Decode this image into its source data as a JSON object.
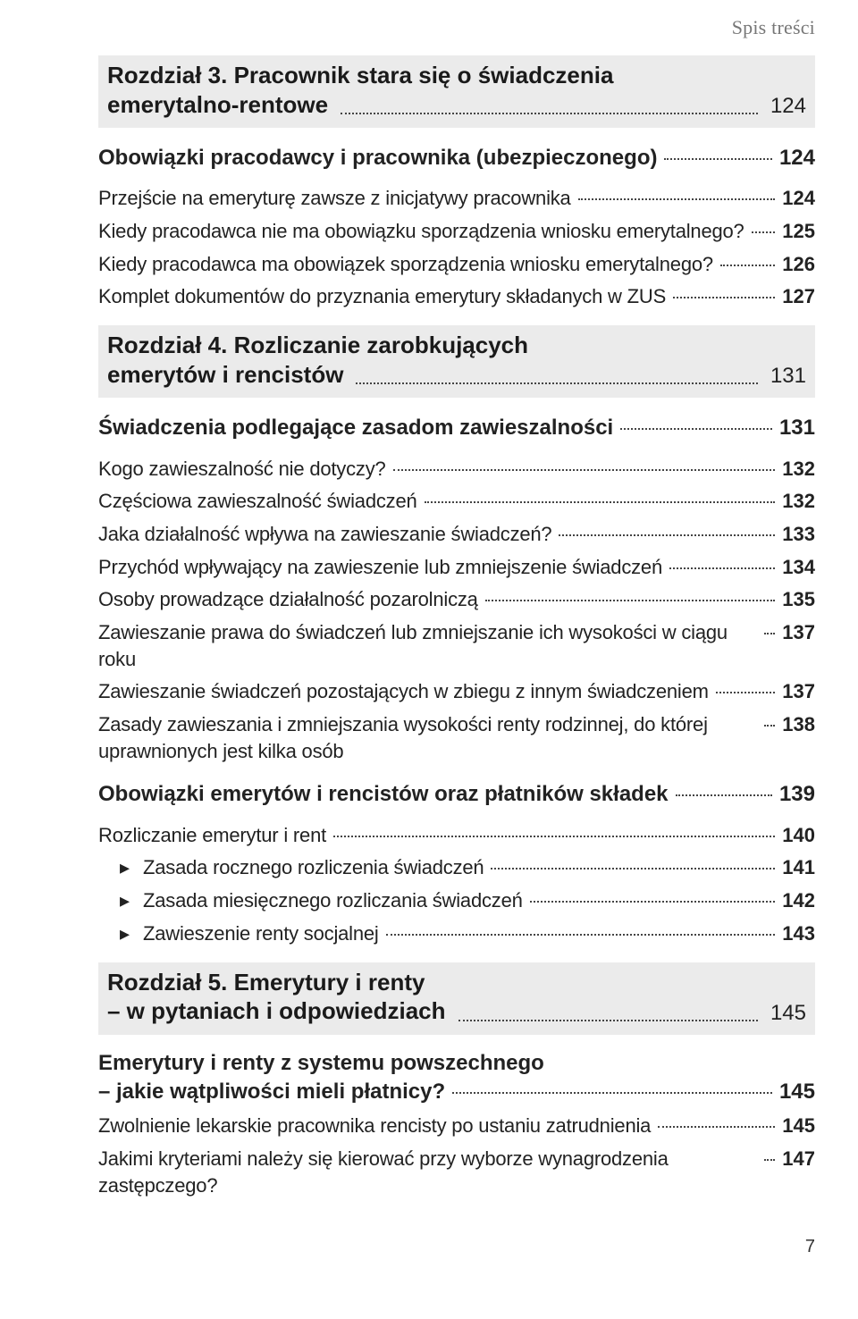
{
  "running_head": "Spis treści",
  "page_number": "7",
  "chapters": [
    {
      "title_line1": "Rozdział 3. Pracownik stara się o świadczenia",
      "title_line2": "emerytalno-rentowe",
      "page": "124",
      "entries": [
        {
          "style": "bold",
          "text": "Obowiązki pracodawcy i pracownika (ubezpieczonego)",
          "page": "124"
        },
        {
          "style": "cond",
          "text": "Przejście na emeryturę zawsze z inicjatywy pracownika",
          "page": "124"
        },
        {
          "style": "cond",
          "text": "Kiedy pracodawca nie ma obowiązku sporządzenia wniosku emerytalnego?",
          "page": "125"
        },
        {
          "style": "cond",
          "text": "Kiedy pracodawca ma obowiązek sporządzenia wniosku emerytalnego?",
          "page": "126"
        },
        {
          "style": "cond",
          "text": "Komplet dokumentów do przyznania emerytury składanych w ZUS",
          "page": "127"
        }
      ]
    },
    {
      "title_line1": "Rozdział 4. Rozliczanie zarobkujących",
      "title_line2": "emerytów  i rencistów",
      "page": "131",
      "entries": [
        {
          "style": "bold",
          "text": "Świadczenia podlegające zasadom zawieszalności",
          "page": "131"
        },
        {
          "style": "cond",
          "text": "Kogo zawieszalność nie dotyczy?",
          "page": "132"
        },
        {
          "style": "cond",
          "text": "Częściowa zawieszalność świadczeń",
          "page": "132"
        },
        {
          "style": "cond",
          "text": "Jaka działalność wpływa na zawieszanie świadczeń?",
          "page": "133"
        },
        {
          "style": "cond",
          "text": "Przychód wpływający na zawieszenie lub zmniejszenie świadczeń",
          "page": "134"
        },
        {
          "style": "cond",
          "text": "Osoby prowadzące działalność pozarolniczą",
          "page": "135"
        },
        {
          "style": "cond",
          "text": "Zawieszanie prawa do świadczeń lub zmniejszanie ich wysokości w ciągu roku",
          "page": "137"
        },
        {
          "style": "cond",
          "text": "Zawieszanie świadczeń pozostających w zbiegu z innym świadczeniem",
          "page": "137"
        },
        {
          "style": "cond",
          "text": "Zasady zawieszania i zmniejszania wysokości renty rodzinnej, do której uprawnionych jest kilka osób",
          "page": "138"
        },
        {
          "style": "bold",
          "text": "Obowiązki emerytów i rencistów oraz płatników składek",
          "page": "139"
        },
        {
          "style": "cond",
          "text": "Rozliczanie emerytur i rent",
          "page": "140"
        },
        {
          "style": "cond sub",
          "text": "Zasada rocznego rozliczenia świadczeń",
          "page": "141"
        },
        {
          "style": "cond sub",
          "text": "Zasada miesięcznego rozliczania świadczeń",
          "page": "142"
        },
        {
          "style": "cond sub",
          "text": "Zawieszenie renty socjalnej",
          "page": "143"
        }
      ]
    },
    {
      "title_line1": "Rozdział 5. Emerytury i renty",
      "title_line2": "– w pytaniach  i odpowiedziach",
      "page": "145",
      "entries": [
        {
          "style": "bold",
          "wrap": true,
          "text_line1": "Emerytury i renty z systemu powszechnego",
          "text_line2": "– jakie wątpliwości mieli płatnicy?",
          "page": "145"
        },
        {
          "style": "cond",
          "text": "Zwolnienie lekarskie pracownika rencisty po ustaniu zatrudnienia",
          "page": "145"
        },
        {
          "style": "cond",
          "text": "Jakimi kryteriami należy się kierować przy wyborze wynagrodzenia zastępczego?",
          "page": "147"
        }
      ]
    }
  ]
}
